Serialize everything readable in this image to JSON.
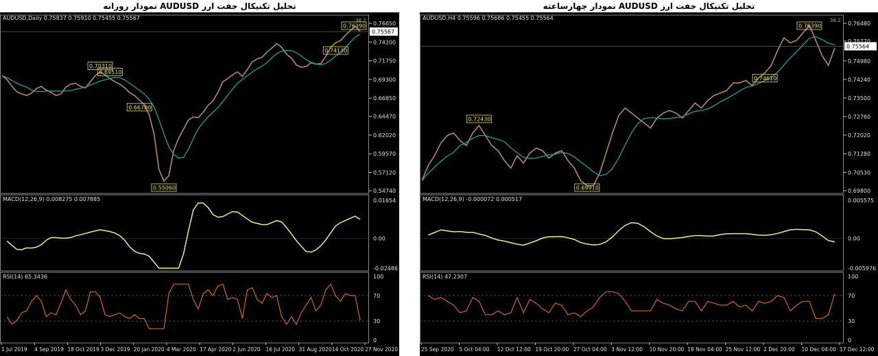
{
  "chart_data": [
    {
      "type": "line",
      "title": "تحلیل تکنیکال جفت ارز AUDUSD نمودار روزانه",
      "main": {
        "header": "AUDUSD,Daily  0.75837 0.75910 0.75455 0.75567",
        "price_label": "0.75567",
        "y_ticks": [
          "0.76650",
          "0.74200",
          "0.71750",
          "0.69300",
          "0.66850",
          "0.64470",
          "0.62020",
          "0.59570",
          "0.57120",
          "0.54740"
        ],
        "y_range": [
          0.5474,
          0.7665
        ],
        "annotations": [
          "0.76390",
          "0.74130",
          "0.70310",
          "0.66700",
          "0.69510",
          "0.55060"
        ],
        "corner_value": "38.2"
      },
      "macd": {
        "header": "MACD(12,26,9) 0.008275 0.007885",
        "y_ticks": [
          "0.01654",
          "0.00",
          "-0.02486"
        ]
      },
      "rsi": {
        "header": "RSI(14) 65.3436",
        "y_ticks": [
          "100",
          "70",
          "30",
          "0"
        ]
      },
      "x_labels": [
        "1 Jul 2019",
        "4 Sep 2019",
        "18 Oct 2019",
        "3 Dec 2019",
        "20 Jan 2020",
        "4 Mar 2020",
        "17 Apr 2020",
        "2 Jun 2020",
        "16 Jul 2020",
        "31 Aug 2020",
        "14 Oct 2020",
        "27 Nov 2020"
      ],
      "series": [
        {
          "name": "AUDUSD",
          "values": [
            0.698,
            0.693,
            0.684,
            0.677,
            0.674,
            0.672,
            0.675,
            0.681,
            0.684,
            0.679,
            0.676,
            0.672,
            0.674,
            0.683,
            0.687,
            0.688,
            0.684,
            0.682,
            0.69,
            0.698,
            0.703,
            0.699,
            0.694,
            0.69,
            0.687,
            0.682,
            0.676,
            0.672,
            0.666,
            0.66,
            0.647,
            0.621,
            0.575,
            0.56,
            0.567,
            0.6,
            0.616,
            0.628,
            0.64,
            0.644,
            0.643,
            0.65,
            0.659,
            0.665,
            0.676,
            0.69,
            0.694,
            0.699,
            0.703,
            0.697,
            0.706,
            0.716,
            0.72,
            0.722,
            0.729,
            0.734,
            0.74,
            0.735,
            0.726,
            0.721,
            0.712,
            0.709,
            0.71,
            0.715,
            0.713,
            0.714,
            0.723,
            0.735,
            0.741,
            0.744,
            0.751,
            0.757,
            0.763,
            0.756
          ]
        }
      ]
    },
    {
      "type": "line",
      "title": "تحلیل تکنیکال جفت ارز AUDUSD نمودار چهارساعته",
      "main": {
        "header": "AUDUSD,H4  0.75596 0.75686 0.75455 0.75564",
        "price_label": "0.75564",
        "y_ticks": [
          "0.76480",
          "0.75770",
          "0.74980",
          "0.74240",
          "0.73500",
          "0.72760",
          "0.72020",
          "0.71280",
          "0.70530",
          "0.69800"
        ],
        "y_range": [
          0.698,
          0.7648
        ],
        "annotations": [
          "0.76390",
          "0.74610",
          "0.72430",
          "0.69910"
        ],
        "corner_value": "38.2"
      },
      "macd": {
        "header": "MACD(12,26,9) -0.000072 0.000517",
        "y_ticks": [
          "0.005575",
          "0.00",
          "-0.005976"
        ]
      },
      "rsi": {
        "header": "RSI(14) 47.2307",
        "y_ticks": [
          "100",
          "70",
          "30",
          "0"
        ]
      },
      "x_labels": [
        "25 Sep 2020",
        "5 Oct 04:00",
        "12 Oct 12:00",
        "19 Oct 20:00",
        "27 Oct 04:00",
        "3 Nov 12:00",
        "10 Nov 20:00",
        "18 Nov 04:00",
        "25 Nov 12:00",
        "2 Dec 20:00",
        "10 Dec 04:00",
        "17 Dec 12:00"
      ],
      "series": [
        {
          "name": "AUDUSD",
          "values": [
            0.702,
            0.708,
            0.712,
            0.717,
            0.72,
            0.721,
            0.718,
            0.716,
            0.721,
            0.724,
            0.72,
            0.716,
            0.714,
            0.71,
            0.707,
            0.712,
            0.709,
            0.713,
            0.715,
            0.714,
            0.711,
            0.713,
            0.714,
            0.71,
            0.707,
            0.702,
            0.7,
            0.7,
            0.705,
            0.713,
            0.721,
            0.728,
            0.731,
            0.729,
            0.727,
            0.725,
            0.723,
            0.727,
            0.729,
            0.73,
            0.729,
            0.727,
            0.73,
            0.733,
            0.731,
            0.734,
            0.736,
            0.737,
            0.738,
            0.741,
            0.741,
            0.742,
            0.74,
            0.743,
            0.745,
            0.748,
            0.754,
            0.759,
            0.757,
            0.758,
            0.761,
            0.764,
            0.758,
            0.752,
            0.748,
            0.755
          ]
        }
      ]
    }
  ]
}
